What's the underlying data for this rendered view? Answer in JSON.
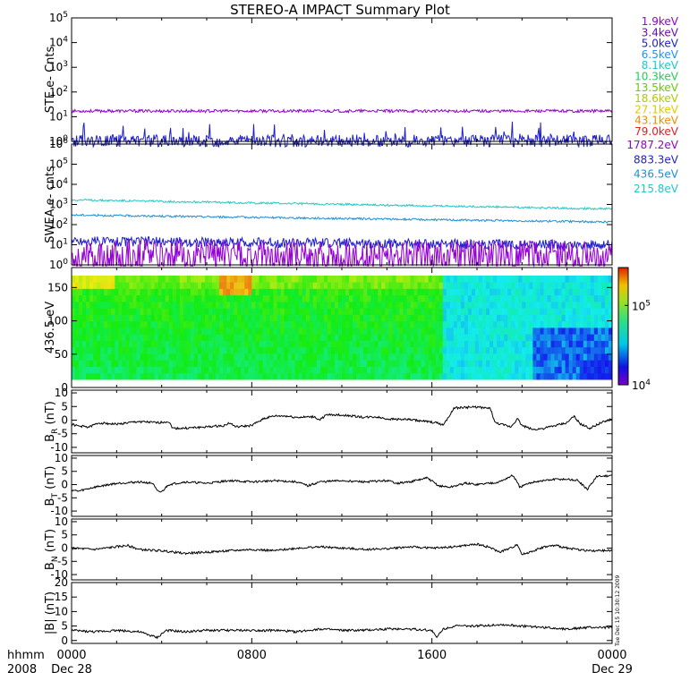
{
  "title": "STEREO-A IMPACT Summary Plot",
  "stamp": "Tue Dec 15 10:30:12 2009",
  "time_axis": {
    "row_label": "hhmm",
    "year": "2008",
    "ticks": [
      {
        "label": "0000",
        "date": "Dec 28"
      },
      {
        "label": "0800",
        "date": ""
      },
      {
        "label": "1600",
        "date": ""
      },
      {
        "label": "0000",
        "date": "Dec 29"
      }
    ]
  },
  "colorbar": {
    "ticks": [
      {
        "base": "10",
        "exp": "5",
        "value": 100000
      },
      {
        "base": "10",
        "exp": "4",
        "value": 10000
      }
    ]
  },
  "chart_data": [
    {
      "type": "line",
      "name": "ste",
      "ylabel": "STE e- Cnts",
      "yscale": "log",
      "ylim": [
        1,
        100000
      ],
      "y_ticks": [
        {
          "base": "10",
          "exp": "0"
        },
        {
          "base": "10",
          "exp": "1"
        },
        {
          "base": "10",
          "exp": "2"
        },
        {
          "base": "10",
          "exp": "3"
        },
        {
          "base": "10",
          "exp": "4"
        },
        {
          "base": "10",
          "exp": "5"
        }
      ],
      "legend": [
        {
          "label": "1.9keV",
          "color": "#9400d3"
        },
        {
          "label": "3.4keV",
          "color": "#6a0dad"
        },
        {
          "label": "5.0keV",
          "color": "#1e1ecf"
        },
        {
          "label": "6.5keV",
          "color": "#1e90ff"
        },
        {
          "label": "8.1keV",
          "color": "#20c8c8"
        },
        {
          "label": "10.3keV",
          "color": "#22cc55"
        },
        {
          "label": "13.5keV",
          "color": "#66cc00"
        },
        {
          "label": "18.6keV",
          "color": "#aacc00"
        },
        {
          "label": "27.1keV",
          "color": "#e0c800"
        },
        {
          "label": "43.1keV",
          "color": "#f08c00"
        },
        {
          "label": "79.0keV",
          "color": "#e02020"
        }
      ],
      "series": [
        {
          "color": "#9400d3",
          "level": 17,
          "noise": 0.06
        },
        {
          "color": "#1e1ecf",
          "level": 1.05,
          "noise": 0.25,
          "spiky": true
        }
      ]
    },
    {
      "type": "line",
      "name": "swea",
      "ylabel": "SWEA e- cnts",
      "yscale": "log",
      "ylim": [
        1,
        1000000
      ],
      "y_ticks": [
        {
          "base": "10",
          "exp": "0"
        },
        {
          "base": "10",
          "exp": "1"
        },
        {
          "base": "10",
          "exp": "2"
        },
        {
          "base": "10",
          "exp": "3"
        },
        {
          "base": "10",
          "exp": "4"
        },
        {
          "base": "10",
          "exp": "5"
        },
        {
          "base": "10",
          "exp": "6"
        }
      ],
      "legend": [
        {
          "label": "1787.2eV",
          "color": "#9400d3"
        },
        {
          "label": "883.3eV",
          "color": "#1e1ecf"
        },
        {
          "label": "436.5eV",
          "color": "#1e8fd6"
        },
        {
          "label": "215.8eV",
          "color": "#20c8c8"
        }
      ],
      "series": [
        {
          "color": "#20c8c8",
          "level": 1700,
          "noise": 0.05,
          "drift": -0.45
        },
        {
          "color": "#1e8fd6",
          "level": 300,
          "noise": 0.05,
          "drift": -0.35
        },
        {
          "color": "#1e1ecf",
          "level": 15,
          "noise": 0.25,
          "drift": -0.2
        },
        {
          "color": "#9400d3",
          "level": 5,
          "noise": 0.6,
          "drift": -0.1
        }
      ]
    },
    {
      "type": "heatmap",
      "name": "pad",
      "ylabel": "436.5 eV",
      "ylim": [
        0,
        180
      ],
      "y_ticks": [
        "0",
        "50",
        "100",
        "150"
      ],
      "colorscale": "log",
      "zlim": [
        10000,
        300000
      ]
    },
    {
      "type": "line",
      "name": "br",
      "ylabel_main": "B",
      "ylabel_sub": "R",
      "ylabel_unit": " (nT)",
      "ylim": [
        -12,
        11
      ],
      "y_ticks": [
        "10",
        "5",
        "0",
        "-5",
        "-10"
      ],
      "series": [
        {
          "color": "#000000",
          "points": [
            [
              0,
              -1.5
            ],
            [
              0.3,
              -2.2
            ],
            [
              0.8,
              -2.5
            ],
            [
              1.2,
              -1.0
            ],
            [
              2,
              -1.5
            ],
            [
              3,
              -0.5
            ],
            [
              3.8,
              -1.0
            ],
            [
              4.3,
              -0.5
            ],
            [
              4.5,
              -3.0
            ],
            [
              5,
              -3.0
            ],
            [
              6,
              -2.5
            ],
            [
              6.8,
              -2.0
            ],
            [
              7,
              -1.0
            ],
            [
              7.3,
              -2.5
            ],
            [
              8,
              -2.0
            ],
            [
              8.5,
              0.5
            ],
            [
              9,
              1.5
            ],
            [
              9.5,
              1.5
            ],
            [
              10,
              1.0
            ],
            [
              10.8,
              1.2
            ],
            [
              11,
              0.0
            ],
            [
              11.3,
              1.8
            ],
            [
              11.6,
              2.0
            ],
            [
              12,
              1.8
            ],
            [
              12.5,
              1.5
            ],
            [
              13,
              1.0
            ],
            [
              13.5,
              1.2
            ],
            [
              14,
              0.5
            ],
            [
              15,
              0.2
            ],
            [
              15.7,
              -0.5
            ],
            [
              16.2,
              -1.0
            ],
            [
              16.5,
              -1.8
            ],
            [
              17,
              4.5
            ],
            [
              18,
              4.8
            ],
            [
              18.6,
              4.2
            ],
            [
              18.8,
              -1.0
            ],
            [
              19.5,
              -2.5
            ],
            [
              19.8,
              0.5
            ],
            [
              20,
              -2.0
            ],
            [
              20.5,
              -3.5
            ],
            [
              21,
              -3.0
            ],
            [
              21.5,
              -2.0
            ],
            [
              22,
              -1.0
            ],
            [
              22.3,
              1.5
            ],
            [
              22.6,
              -1.5
            ],
            [
              23,
              -3.0
            ],
            [
              23.5,
              -1.0
            ],
            [
              24,
              0.5
            ]
          ]
        }
      ]
    },
    {
      "type": "line",
      "name": "bt",
      "ylabel_main": "B",
      "ylabel_sub": "T",
      "ylabel_unit": " (nT)",
      "ylim": [
        -12,
        11
      ],
      "y_ticks": [
        "10",
        "5",
        "0",
        "-5",
        "-10"
      ],
      "series": [
        {
          "color": "#000000",
          "points": [
            [
              0,
              -2.0
            ],
            [
              0.3,
              -2.5
            ],
            [
              1,
              -1.0
            ],
            [
              2,
              0.5
            ],
            [
              3,
              1.0
            ],
            [
              3.6,
              0.5
            ],
            [
              3.8,
              -2.5
            ],
            [
              4,
              -2.8
            ],
            [
              4.3,
              0.0
            ],
            [
              5,
              1.0
            ],
            [
              6,
              0.5
            ],
            [
              7,
              1.5
            ],
            [
              8,
              1.0
            ],
            [
              9,
              1.5
            ],
            [
              10,
              1.0
            ],
            [
              10.5,
              -0.5
            ],
            [
              11,
              1.0
            ],
            [
              12,
              1.5
            ],
            [
              13,
              1.0
            ],
            [
              14,
              1.5
            ],
            [
              14.5,
              0.5
            ],
            [
              15,
              1.0
            ],
            [
              15.8,
              2.5
            ],
            [
              16.3,
              -0.5
            ],
            [
              16.8,
              -1.0
            ],
            [
              17.5,
              0.5
            ],
            [
              18,
              0.0
            ],
            [
              18.5,
              0.5
            ],
            [
              19,
              1.0
            ],
            [
              19.6,
              3.5
            ],
            [
              19.9,
              -1.0
            ],
            [
              20.2,
              0.0
            ],
            [
              20.5,
              1.0
            ],
            [
              21,
              1.5
            ],
            [
              21.5,
              2.0
            ],
            [
              22,
              2.0
            ],
            [
              22.5,
              1.5
            ],
            [
              22.9,
              -2.0
            ],
            [
              23.3,
              3.0
            ],
            [
              24,
              3.5
            ]
          ]
        }
      ]
    },
    {
      "type": "line",
      "name": "bn",
      "ylabel_main": "B",
      "ylabel_sub": "N",
      "ylabel_unit": " (nT)",
      "ylim": [
        -12,
        11
      ],
      "y_ticks": [
        "10",
        "5",
        "0",
        "-5",
        "-10"
      ],
      "series": [
        {
          "color": "#000000",
          "points": [
            [
              0,
              0.0
            ],
            [
              1,
              -0.5
            ],
            [
              2,
              0.5
            ],
            [
              2.5,
              1.0
            ],
            [
              3,
              -0.5
            ],
            [
              4,
              -1.0
            ],
            [
              5,
              -2.0
            ],
            [
              6,
              -1.5
            ],
            [
              7,
              -1.0
            ],
            [
              8,
              -0.5
            ],
            [
              9,
              -1.0
            ],
            [
              10,
              0.0
            ],
            [
              11,
              0.5
            ],
            [
              12,
              0.0
            ],
            [
              13,
              -0.5
            ],
            [
              14,
              -0.2
            ],
            [
              15,
              0.5
            ],
            [
              16,
              0.0
            ],
            [
              17,
              0.5
            ],
            [
              18,
              1.5
            ],
            [
              18.5,
              0.5
            ],
            [
              19,
              -1.5
            ],
            [
              19.5,
              0.0
            ],
            [
              19.8,
              1.5
            ],
            [
              20,
              -2.5
            ],
            [
              20.5,
              -1.0
            ],
            [
              21,
              0.5
            ],
            [
              21.5,
              1.0
            ],
            [
              22,
              0.0
            ],
            [
              23,
              -1.0
            ],
            [
              24,
              -1.0
            ]
          ]
        }
      ]
    },
    {
      "type": "line",
      "name": "bmag",
      "ylabel_main": "|B|",
      "ylabel_sub": "",
      "ylabel_unit": " (nT)",
      "ylim": [
        -1,
        20
      ],
      "y_ticks": [
        "20",
        "15",
        "10",
        "5",
        "0"
      ],
      "series": [
        {
          "color": "#000000",
          "points": [
            [
              0,
              3.5
            ],
            [
              1,
              3.0
            ],
            [
              2,
              3.5
            ],
            [
              3,
              3.0
            ],
            [
              3.8,
              1.0
            ],
            [
              4.2,
              3.5
            ],
            [
              5,
              3.0
            ],
            [
              6,
              3.5
            ],
            [
              7,
              3.5
            ],
            [
              8,
              3.5
            ],
            [
              9,
              3.5
            ],
            [
              10,
              3.0
            ],
            [
              11,
              4.0
            ],
            [
              12,
              3.5
            ],
            [
              13,
              3.5
            ],
            [
              14,
              4.0
            ],
            [
              15,
              4.0
            ],
            [
              16,
              3.5
            ],
            [
              16.2,
              1.0
            ],
            [
              16.5,
              4.0
            ],
            [
              17,
              5.0
            ],
            [
              18,
              5.0
            ],
            [
              19,
              5.5
            ],
            [
              20,
              5.0
            ],
            [
              21,
              4.5
            ],
            [
              22,
              4.0
            ],
            [
              23,
              4.5
            ],
            [
              24,
              4.5
            ]
          ]
        }
      ]
    }
  ]
}
